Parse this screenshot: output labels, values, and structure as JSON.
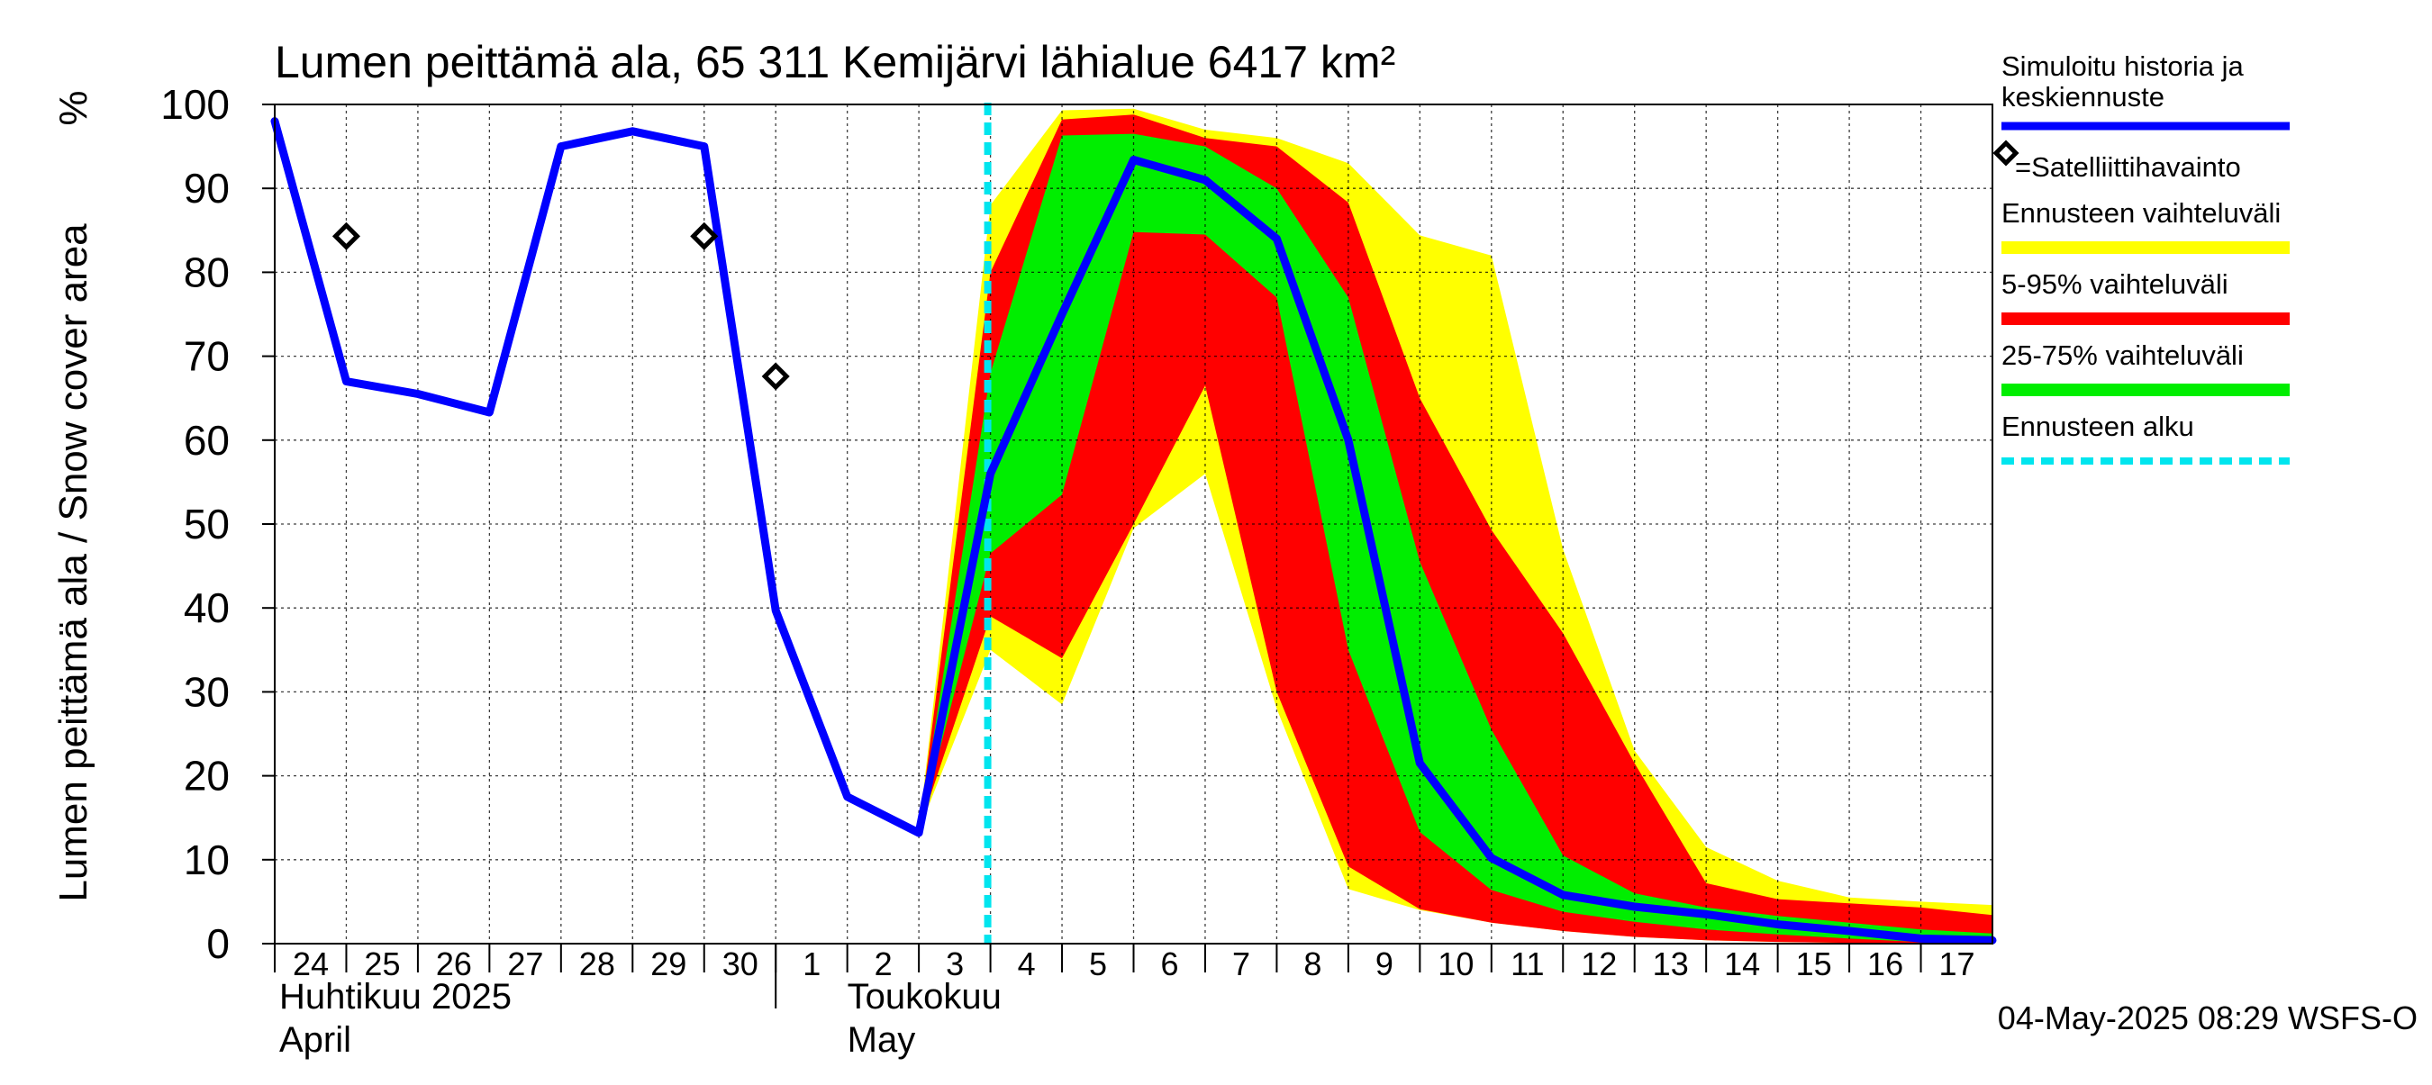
{
  "chart_data": {
    "type": "area",
    "title": "Lumen peittämä ala, 65 311 Kemijärvi lähialue 6417 km²",
    "ylabel": "Lumen peittämä ala / Snow cover area",
    "yunit": "%",
    "ylim": [
      0,
      100
    ],
    "yticks": [
      0,
      10,
      20,
      30,
      40,
      50,
      60,
      70,
      80,
      90,
      100
    ],
    "grid": true,
    "xlim": [
      "2025-04-24",
      "2025-05-17T24:00"
    ],
    "x_tick_labels": [
      {
        "date": "2025-04-24",
        "label": "24"
      },
      {
        "date": "2025-04-25",
        "label": "25"
      },
      {
        "date": "2025-04-26",
        "label": "26"
      },
      {
        "date": "2025-04-27",
        "label": "27"
      },
      {
        "date": "2025-04-28",
        "label": "28"
      },
      {
        "date": "2025-04-29",
        "label": "29"
      },
      {
        "date": "2025-04-30",
        "label": "30"
      },
      {
        "date": "2025-05-01",
        "label": "1"
      },
      {
        "date": "2025-05-02",
        "label": "2"
      },
      {
        "date": "2025-05-03",
        "label": "3"
      },
      {
        "date": "2025-05-04",
        "label": "4"
      },
      {
        "date": "2025-05-05",
        "label": "5"
      },
      {
        "date": "2025-05-06",
        "label": "6"
      },
      {
        "date": "2025-05-07",
        "label": "7"
      },
      {
        "date": "2025-05-08",
        "label": "8"
      },
      {
        "date": "2025-05-09",
        "label": "9"
      },
      {
        "date": "2025-05-10",
        "label": "10"
      },
      {
        "date": "2025-05-11",
        "label": "11"
      },
      {
        "date": "2025-05-12",
        "label": "12"
      },
      {
        "date": "2025-05-13",
        "label": "13"
      },
      {
        "date": "2025-05-14",
        "label": "14"
      },
      {
        "date": "2025-05-15",
        "label": "15"
      },
      {
        "date": "2025-05-16",
        "label": "16"
      },
      {
        "date": "2025-05-17",
        "label": "17"
      }
    ],
    "month_labels": [
      {
        "line1": "Huhtikuu  2025",
        "line2": "April"
      },
      {
        "line1": "Toukokuu",
        "line2": "May"
      }
    ],
    "forecast_start": "2025-05-04",
    "footer": "04-May-2025 08:29 WSFS-O",
    "legend_position": "right",
    "legend": [
      {
        "label": "Simuloitu historia ja keskiennuste",
        "kind": "line",
        "color": "#0000ff"
      },
      {
        "label": "=Satelliittihavainto",
        "kind": "marker",
        "color": "#000000"
      },
      {
        "label": "Ennusteen vaihteluväli",
        "kind": "band",
        "color": "#ffff00"
      },
      {
        "label": "5-95% vaihteluväli",
        "kind": "band",
        "color": "#ff0000"
      },
      {
        "label": "25-75% vaihteluväli",
        "kind": "band",
        "color": "#00ee00"
      },
      {
        "label": "Ennusteen alku",
        "kind": "dashed",
        "color": "#00e5ee"
      }
    ],
    "series": [
      {
        "name": "Simuloitu historia ja keskiennuste",
        "color": "#0000ff",
        "points": [
          [
            "2025-04-24",
            98
          ],
          [
            "2025-04-25",
            67
          ],
          [
            "2025-04-26",
            65.5
          ],
          [
            "2025-04-27",
            63.3
          ],
          [
            "2025-04-28",
            95
          ],
          [
            "2025-04-29",
            96.8
          ],
          [
            "2025-04-30",
            95
          ],
          [
            "2025-05-01",
            39.7
          ],
          [
            "2025-05-02",
            17.5
          ],
          [
            "2025-05-03",
            13.2
          ],
          [
            "2025-05-04",
            56
          ],
          [
            "2025-05-05",
            75
          ],
          [
            "2025-05-06",
            93.4
          ],
          [
            "2025-05-07",
            91
          ],
          [
            "2025-05-08",
            84
          ],
          [
            "2025-05-09",
            60
          ],
          [
            "2025-05-10",
            21.5
          ],
          [
            "2025-05-11",
            10.2
          ],
          [
            "2025-05-12",
            5.8
          ],
          [
            "2025-05-13",
            4.4
          ],
          [
            "2025-05-14",
            3.5
          ],
          [
            "2025-05-15",
            2.3
          ],
          [
            "2025-05-16",
            1.5
          ],
          [
            "2025-05-17",
            0.6
          ],
          [
            "2025-05-17T24:00",
            0.4
          ]
        ]
      },
      {
        "name": "=Satelliittihavainto",
        "color": "#000000",
        "points": [
          [
            "2025-04-25",
            84.3
          ],
          [
            "2025-04-30",
            84.3
          ],
          [
            "2025-05-01",
            67.6
          ]
        ]
      }
    ],
    "bands": [
      {
        "name": "Ennusteen vaihteluväli",
        "color": "#ffff00",
        "upper": [
          [
            "2025-05-03",
            13.5
          ],
          [
            "2025-05-04",
            88
          ],
          [
            "2025-05-05",
            99.3
          ],
          [
            "2025-05-06",
            99.5
          ],
          [
            "2025-05-07",
            97
          ],
          [
            "2025-05-08",
            96
          ],
          [
            "2025-05-09",
            93
          ],
          [
            "2025-05-10",
            84.4
          ],
          [
            "2025-05-11",
            82
          ],
          [
            "2025-05-12",
            47
          ],
          [
            "2025-05-13",
            23
          ],
          [
            "2025-05-14",
            11.5
          ],
          [
            "2025-05-15",
            7.5
          ],
          [
            "2025-05-16",
            5.5
          ],
          [
            "2025-05-17",
            5
          ],
          [
            "2025-05-17T24:00",
            4.6
          ]
        ],
        "lower": [
          [
            "2025-05-03",
            13.5
          ],
          [
            "2025-05-04",
            35
          ],
          [
            "2025-05-05",
            28.5
          ],
          [
            "2025-05-06",
            49.5
          ],
          [
            "2025-05-07",
            56
          ],
          [
            "2025-05-08",
            28
          ],
          [
            "2025-05-09",
            6.5
          ],
          [
            "2025-05-10",
            4
          ],
          [
            "2025-05-11",
            2.5
          ],
          [
            "2025-05-12",
            1.5
          ],
          [
            "2025-05-13",
            0.8
          ],
          [
            "2025-05-14",
            0.4
          ],
          [
            "2025-05-15",
            0.2
          ],
          [
            "2025-05-16",
            0.1
          ],
          [
            "2025-05-17",
            0
          ],
          [
            "2025-05-17T24:00",
            0
          ]
        ]
      },
      {
        "name": "5-95% vaihteluväli",
        "color": "#ff0000",
        "upper": [
          [
            "2025-05-03",
            13.5
          ],
          [
            "2025-05-04",
            80
          ],
          [
            "2025-05-05",
            98.2
          ],
          [
            "2025-05-06",
            98.8
          ],
          [
            "2025-05-07",
            96
          ],
          [
            "2025-05-08",
            95
          ],
          [
            "2025-05-09",
            88.3
          ],
          [
            "2025-05-10",
            65
          ],
          [
            "2025-05-11",
            49.3
          ],
          [
            "2025-05-12",
            37
          ],
          [
            "2025-05-13",
            21.5
          ],
          [
            "2025-05-14",
            7.2
          ],
          [
            "2025-05-15",
            5.3
          ],
          [
            "2025-05-16",
            4.8
          ],
          [
            "2025-05-17",
            4.3
          ],
          [
            "2025-05-17T24:00",
            3.4
          ]
        ],
        "lower": [
          [
            "2025-05-03",
            13.5
          ],
          [
            "2025-05-04",
            39
          ],
          [
            "2025-05-05",
            34
          ],
          [
            "2025-05-06",
            50
          ],
          [
            "2025-05-07",
            66.5
          ],
          [
            "2025-05-08",
            30
          ],
          [
            "2025-05-09",
            9.2
          ],
          [
            "2025-05-10",
            4.1
          ],
          [
            "2025-05-11",
            2.5
          ],
          [
            "2025-05-12",
            1.5
          ],
          [
            "2025-05-13",
            0.8
          ],
          [
            "2025-05-14",
            0.4
          ],
          [
            "2025-05-15",
            0.2
          ],
          [
            "2025-05-16",
            0.1
          ],
          [
            "2025-05-17",
            0
          ],
          [
            "2025-05-17T24:00",
            0
          ]
        ]
      },
      {
        "name": "25-75% vaihteluväli",
        "color": "#00ee00",
        "upper": [
          [
            "2025-05-03",
            13.5
          ],
          [
            "2025-05-04",
            68
          ],
          [
            "2025-05-05",
            96.3
          ],
          [
            "2025-05-06",
            96.5
          ],
          [
            "2025-05-07",
            95
          ],
          [
            "2025-05-08",
            90
          ],
          [
            "2025-05-09",
            77
          ],
          [
            "2025-05-10",
            45.5
          ],
          [
            "2025-05-11",
            25.5
          ],
          [
            "2025-05-12",
            10.5
          ],
          [
            "2025-05-13",
            6
          ],
          [
            "2025-05-14",
            4.3
          ],
          [
            "2025-05-15",
            3.3
          ],
          [
            "2025-05-16",
            2.5
          ],
          [
            "2025-05-17",
            1.7
          ],
          [
            "2025-05-17T24:00",
            1.2
          ]
        ],
        "lower": [
          [
            "2025-05-03",
            13.5
          ],
          [
            "2025-05-04",
            46.5
          ],
          [
            "2025-05-05",
            53.5
          ],
          [
            "2025-05-06",
            84.8
          ],
          [
            "2025-05-07",
            84.5
          ],
          [
            "2025-05-08",
            77
          ],
          [
            "2025-05-09",
            35
          ],
          [
            "2025-05-10",
            13.3
          ],
          [
            "2025-05-11",
            6.4
          ],
          [
            "2025-05-12",
            3.8
          ],
          [
            "2025-05-13",
            2.6
          ],
          [
            "2025-05-14",
            1.7
          ],
          [
            "2025-05-15",
            1.1
          ],
          [
            "2025-05-16",
            0.6
          ],
          [
            "2025-05-17",
            0.2
          ],
          [
            "2025-05-17T24:00",
            0
          ]
        ]
      }
    ]
  }
}
